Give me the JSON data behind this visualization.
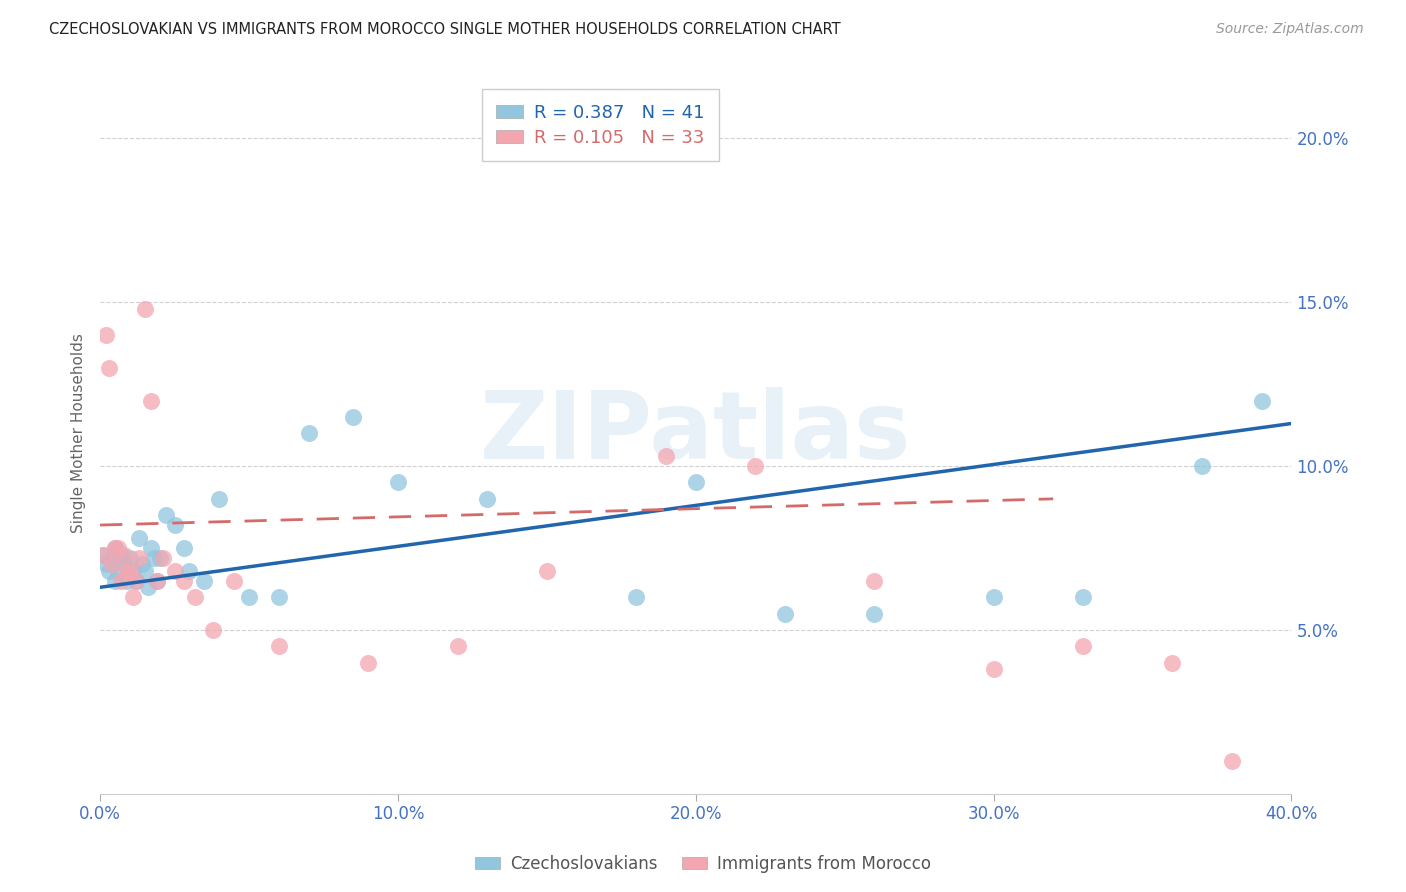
{
  "title": "CZECHOSLOVAKIAN VS IMMIGRANTS FROM MOROCCO SINGLE MOTHER HOUSEHOLDS CORRELATION CHART",
  "source": "Source: ZipAtlas.com",
  "ylabel": "Single Mother Households",
  "xlim": [
    0.0,
    0.4
  ],
  "ylim": [
    0.0,
    0.22
  ],
  "xticks": [
    0.0,
    0.1,
    0.2,
    0.3,
    0.4
  ],
  "yticks": [
    0.05,
    0.1,
    0.15,
    0.2
  ],
  "ytick_labels": [
    "5.0%",
    "10.0%",
    "15.0%",
    "20.0%"
  ],
  "xtick_labels": [
    "0.0%",
    "10.0%",
    "20.0%",
    "30.0%",
    "40.0%"
  ],
  "blue_R": 0.387,
  "blue_N": 41,
  "pink_R": 0.105,
  "pink_N": 33,
  "blue_color": "#92c5de",
  "pink_color": "#f4a6b0",
  "blue_line_color": "#2166ac",
  "pink_line_color": "#d46a6a",
  "axis_tick_color": "#4472C4",
  "watermark_text": "ZIPatlas",
  "blue_scatter_x": [
    0.001,
    0.002,
    0.003,
    0.004,
    0.005,
    0.005,
    0.006,
    0.007,
    0.008,
    0.009,
    0.01,
    0.011,
    0.012,
    0.013,
    0.014,
    0.015,
    0.016,
    0.017,
    0.018,
    0.019,
    0.02,
    0.022,
    0.025,
    0.028,
    0.03,
    0.035,
    0.04,
    0.05,
    0.06,
    0.07,
    0.085,
    0.1,
    0.13,
    0.18,
    0.2,
    0.23,
    0.26,
    0.3,
    0.33,
    0.37,
    0.39
  ],
  "blue_scatter_y": [
    0.073,
    0.07,
    0.068,
    0.072,
    0.075,
    0.065,
    0.068,
    0.073,
    0.07,
    0.065,
    0.072,
    0.068,
    0.065,
    0.078,
    0.07,
    0.068,
    0.063,
    0.075,
    0.072,
    0.065,
    0.072,
    0.085,
    0.082,
    0.075,
    0.068,
    0.065,
    0.09,
    0.06,
    0.06,
    0.11,
    0.115,
    0.095,
    0.09,
    0.06,
    0.095,
    0.055,
    0.055,
    0.06,
    0.06,
    0.1,
    0.12
  ],
  "pink_scatter_x": [
    0.001,
    0.002,
    0.003,
    0.004,
    0.005,
    0.006,
    0.007,
    0.008,
    0.009,
    0.01,
    0.011,
    0.012,
    0.013,
    0.015,
    0.017,
    0.019,
    0.021,
    0.025,
    0.028,
    0.032,
    0.038,
    0.045,
    0.06,
    0.09,
    0.12,
    0.15,
    0.19,
    0.22,
    0.26,
    0.3,
    0.33,
    0.36,
    0.38
  ],
  "pink_scatter_y": [
    0.073,
    0.14,
    0.13,
    0.07,
    0.075,
    0.075,
    0.065,
    0.073,
    0.068,
    0.068,
    0.06,
    0.065,
    0.072,
    0.148,
    0.12,
    0.065,
    0.072,
    0.068,
    0.065,
    0.06,
    0.05,
    0.065,
    0.045,
    0.04,
    0.045,
    0.068,
    0.103,
    0.1,
    0.065,
    0.038,
    0.045,
    0.04,
    0.01
  ],
  "blue_line_x0": 0.0,
  "blue_line_y0": 0.063,
  "blue_line_x1": 0.4,
  "blue_line_y1": 0.113,
  "pink_line_x0": 0.0,
  "pink_line_y0": 0.082,
  "pink_line_x1": 0.32,
  "pink_line_y1": 0.09
}
